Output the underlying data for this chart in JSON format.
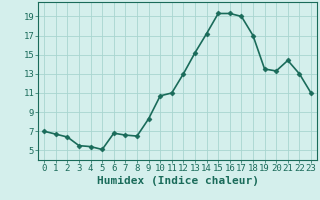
{
  "x": [
    0,
    1,
    2,
    3,
    4,
    5,
    6,
    7,
    8,
    9,
    10,
    11,
    12,
    13,
    14,
    15,
    16,
    17,
    18,
    19,
    20,
    21,
    22,
    23
  ],
  "y": [
    7.0,
    6.7,
    6.4,
    5.5,
    5.4,
    5.1,
    6.8,
    6.6,
    6.5,
    8.3,
    10.7,
    11.0,
    13.0,
    15.2,
    17.2,
    19.3,
    19.3,
    19.0,
    17.0,
    13.5,
    13.3,
    14.4,
    13.0,
    11.0
  ],
  "xlabel": "Humidex (Indice chaleur)",
  "ylim": [
    4,
    20.5
  ],
  "xlim": [
    -0.5,
    23.5
  ],
  "yticks": [
    5,
    7,
    9,
    11,
    13,
    15,
    17,
    19
  ],
  "xticks": [
    0,
    1,
    2,
    3,
    4,
    5,
    6,
    7,
    8,
    9,
    10,
    11,
    12,
    13,
    14,
    15,
    16,
    17,
    18,
    19,
    20,
    21,
    22,
    23
  ],
  "line_color": "#1a6b5a",
  "bg_color": "#d4efec",
  "grid_color": "#a8d5d0",
  "marker": "D",
  "marker_size": 2.5,
  "linewidth": 1.2,
  "xlabel_fontsize": 8,
  "tick_fontsize": 6.5
}
